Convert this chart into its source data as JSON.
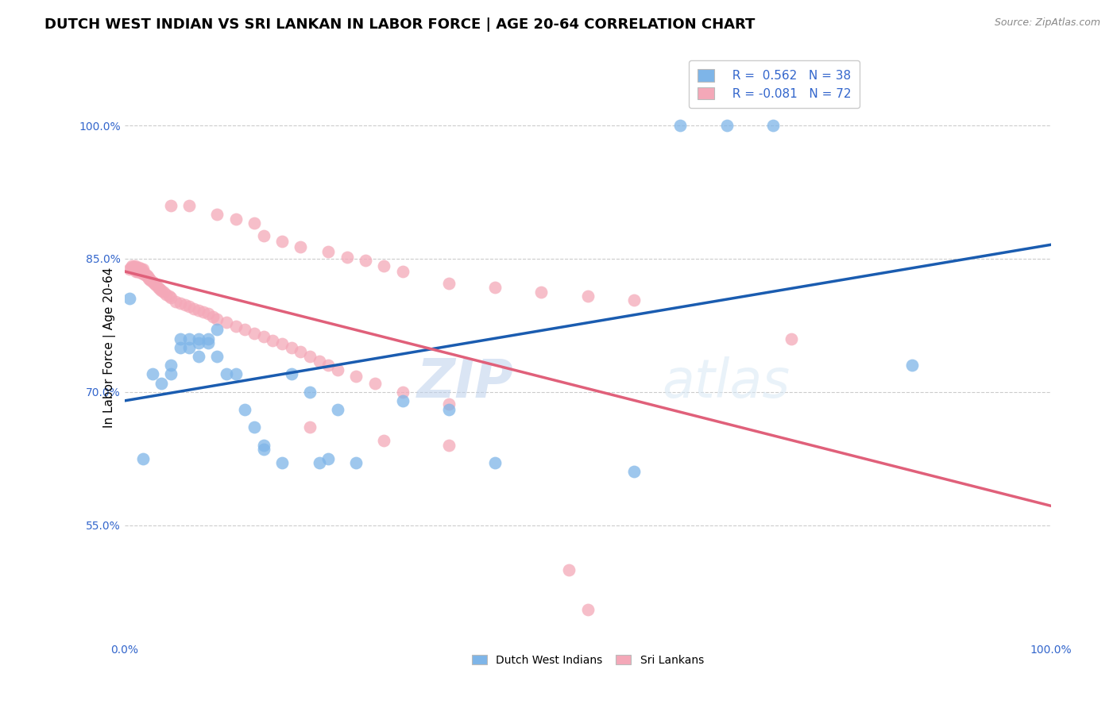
{
  "title": "DUTCH WEST INDIAN VS SRI LANKAN IN LABOR FORCE | AGE 20-64 CORRELATION CHART",
  "source": "Source: ZipAtlas.com",
  "ylabel": "In Labor Force | Age 20-64",
  "yticks_pct": [
    55.0,
    70.0,
    85.0,
    100.0
  ],
  "ytick_labels": [
    "55.0%",
    "70.0%",
    "85.0%",
    "100.0%"
  ],
  "xlim": [
    0.0,
    1.0
  ],
  "ylim": [
    0.42,
    1.08
  ],
  "legend_labels": [
    "Dutch West Indians",
    "Sri Lankans"
  ],
  "legend_R1": "R =  0.562",
  "legend_N1": "N = 38",
  "legend_R2": "R = -0.081",
  "legend_N2": "N = 72",
  "blue_color": "#7EB5E8",
  "pink_color": "#F4A8B8",
  "blue_line_color": "#1A5CB0",
  "pink_line_color": "#E0607A",
  "grid_color": "#CCCCCC",
  "watermark_zip": "ZIP",
  "watermark_atlas": "atlas",
  "blue_scatter_x": [
    0.005,
    0.02,
    0.03,
    0.04,
    0.05,
    0.05,
    0.06,
    0.06,
    0.07,
    0.07,
    0.08,
    0.08,
    0.08,
    0.09,
    0.09,
    0.1,
    0.1,
    0.11,
    0.12,
    0.13,
    0.14,
    0.15,
    0.15,
    0.17,
    0.18,
    0.2,
    0.21,
    0.22,
    0.23,
    0.25,
    0.3,
    0.35,
    0.4,
    0.55,
    0.6,
    0.65,
    0.7,
    0.85
  ],
  "blue_scatter_y": [
    0.805,
    0.625,
    0.72,
    0.71,
    0.72,
    0.73,
    0.76,
    0.75,
    0.76,
    0.75,
    0.76,
    0.755,
    0.74,
    0.76,
    0.755,
    0.77,
    0.74,
    0.72,
    0.72,
    0.68,
    0.66,
    0.64,
    0.635,
    0.62,
    0.72,
    0.7,
    0.62,
    0.625,
    0.68,
    0.62,
    0.69,
    0.68,
    0.62,
    0.61,
    1.0,
    1.0,
    1.0,
    0.73
  ],
  "pink_scatter_x": [
    0.005,
    0.007,
    0.008,
    0.009,
    0.01,
    0.01,
    0.011,
    0.011,
    0.012,
    0.012,
    0.013,
    0.013,
    0.014,
    0.014,
    0.015,
    0.015,
    0.016,
    0.016,
    0.017,
    0.017,
    0.018,
    0.018,
    0.019,
    0.019,
    0.02,
    0.02,
    0.021,
    0.022,
    0.023,
    0.024,
    0.025,
    0.026,
    0.027,
    0.028,
    0.03,
    0.032,
    0.034,
    0.036,
    0.038,
    0.04,
    0.042,
    0.045,
    0.048,
    0.05,
    0.055,
    0.06,
    0.065,
    0.07,
    0.075,
    0.08,
    0.085,
    0.09,
    0.095,
    0.1,
    0.11,
    0.12,
    0.13,
    0.14,
    0.15,
    0.16,
    0.17,
    0.18,
    0.19,
    0.2,
    0.21,
    0.22,
    0.23,
    0.25,
    0.27,
    0.3,
    0.35,
    0.72
  ],
  "pink_scatter_y": [
    0.838,
    0.84,
    0.842,
    0.84,
    0.838,
    0.84,
    0.838,
    0.842,
    0.836,
    0.84,
    0.838,
    0.84,
    0.836,
    0.838,
    0.838,
    0.836,
    0.836,
    0.84,
    0.836,
    0.838,
    0.834,
    0.838,
    0.834,
    0.836,
    0.836,
    0.838,
    0.834,
    0.832,
    0.832,
    0.83,
    0.83,
    0.828,
    0.828,
    0.826,
    0.824,
    0.822,
    0.82,
    0.818,
    0.816,
    0.814,
    0.812,
    0.81,
    0.808,
    0.806,
    0.802,
    0.8,
    0.798,
    0.796,
    0.794,
    0.792,
    0.79,
    0.788,
    0.785,
    0.782,
    0.778,
    0.774,
    0.77,
    0.766,
    0.762,
    0.758,
    0.754,
    0.75,
    0.745,
    0.74,
    0.735,
    0.73,
    0.725,
    0.718,
    0.71,
    0.7,
    0.686,
    0.76
  ],
  "pink_extra_x": [
    0.05,
    0.07,
    0.1,
    0.12,
    0.14,
    0.15,
    0.17,
    0.19,
    0.22,
    0.24,
    0.26,
    0.28,
    0.3,
    0.35,
    0.4,
    0.45,
    0.5,
    0.55,
    0.2,
    0.28,
    0.35,
    0.48,
    0.5
  ],
  "pink_extra_y": [
    0.91,
    0.91,
    0.9,
    0.895,
    0.89,
    0.876,
    0.87,
    0.863,
    0.858,
    0.852,
    0.848,
    0.842,
    0.836,
    0.822,
    0.818,
    0.812,
    0.808,
    0.803,
    0.66,
    0.645,
    0.64,
    0.5,
    0.455
  ],
  "title_fontsize": 13,
  "axis_label_fontsize": 11,
  "tick_fontsize": 10,
  "source_fontsize": 9
}
